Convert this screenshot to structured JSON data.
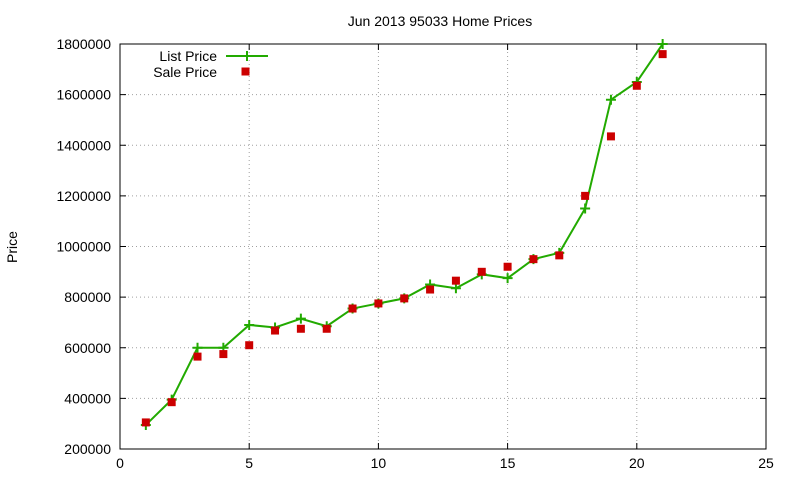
{
  "chart_data": {
    "type": "line",
    "title": "Jun 2013 95033 Home Prices",
    "xlabel": "",
    "ylabel": "Price",
    "xlim": [
      0,
      25
    ],
    "ylim": [
      200000,
      1800000
    ],
    "xticks": [
      "0",
      "5",
      "10",
      "15",
      "20",
      "25"
    ],
    "yticks": [
      "200000",
      "400000",
      "600000",
      "800000",
      "1000000",
      "1200000",
      "1400000",
      "1600000",
      "1800000"
    ],
    "grid": true,
    "legend_position": "top-left",
    "series": [
      {
        "name": "List Price",
        "style": "line-with-plus-markers",
        "color": "#22aa00",
        "x": [
          1,
          2,
          3,
          4,
          5,
          6,
          7,
          8,
          9,
          10,
          11,
          12,
          13,
          14,
          15,
          16,
          17,
          18,
          19,
          20,
          21
        ],
        "y": [
          295000,
          395000,
          600000,
          600000,
          690000,
          680000,
          715000,
          685000,
          755000,
          775000,
          795000,
          850000,
          835000,
          890000,
          875000,
          950000,
          975000,
          1150000,
          1580000,
          1650000,
          1800000
        ]
      },
      {
        "name": "Sale Price",
        "style": "square-markers",
        "color": "#cc0000",
        "x": [
          1,
          2,
          3,
          4,
          5,
          6,
          7,
          8,
          9,
          10,
          11,
          12,
          13,
          14,
          15,
          16,
          17,
          18,
          19,
          20,
          21
        ],
        "y": [
          305000,
          385000,
          565000,
          575000,
          610000,
          668000,
          675000,
          675000,
          755000,
          775000,
          795000,
          830000,
          865000,
          900000,
          920000,
          950000,
          965000,
          1200000,
          1435000,
          1635000,
          1760000
        ]
      }
    ]
  }
}
